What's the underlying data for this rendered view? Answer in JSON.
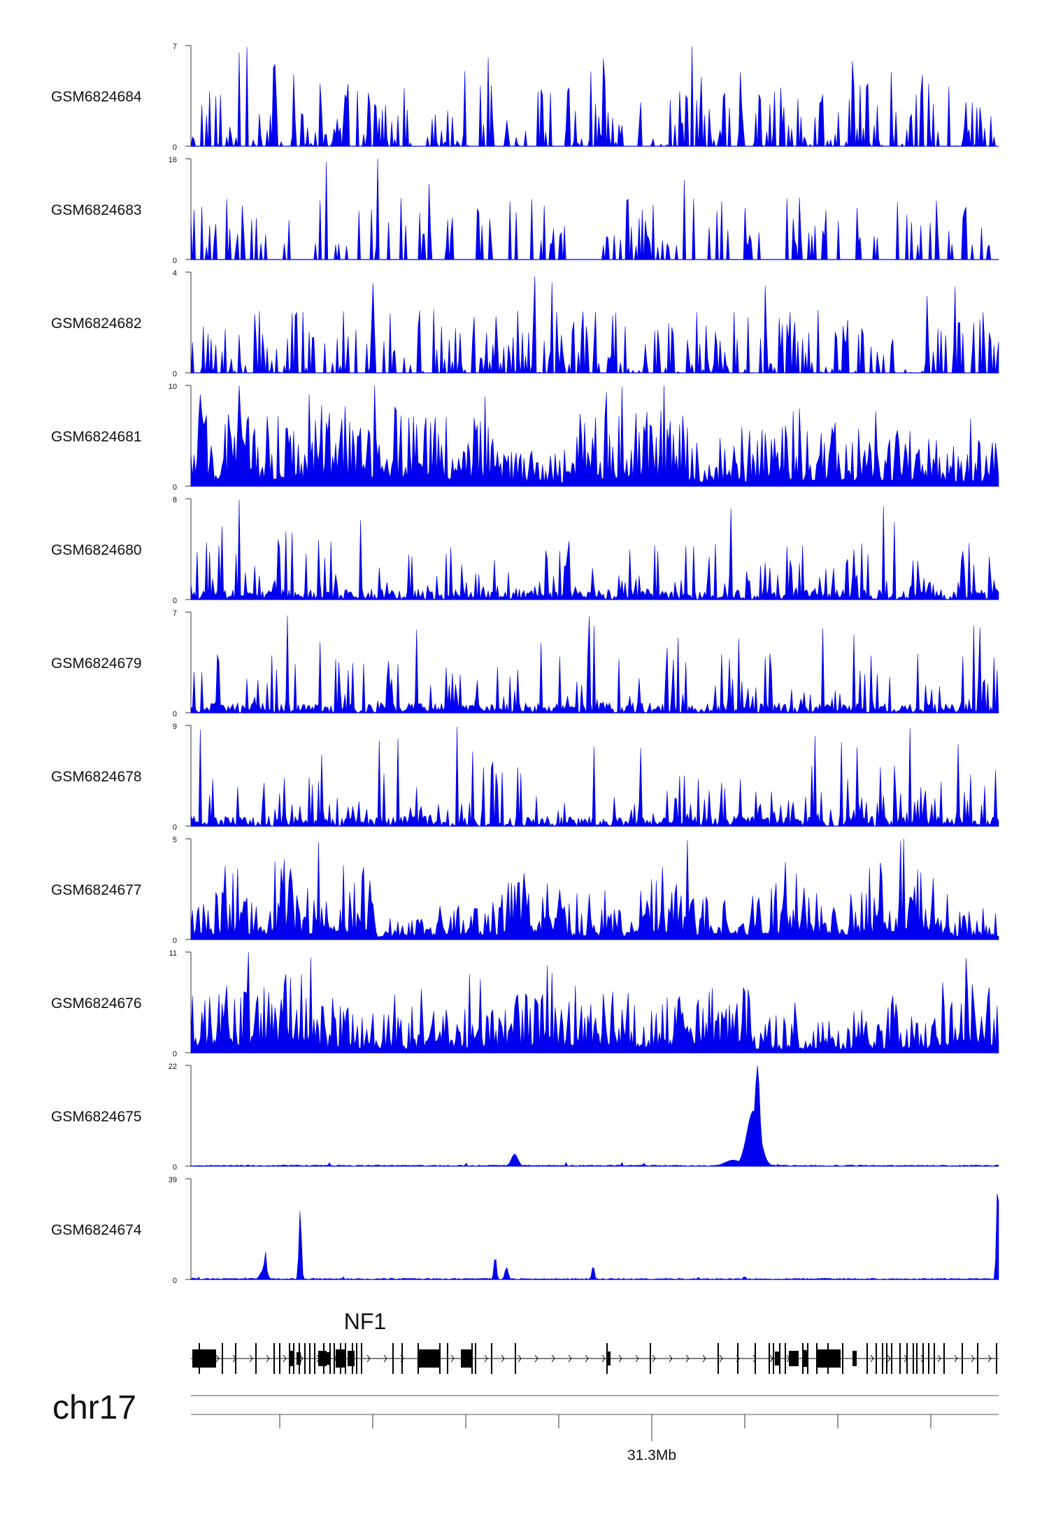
{
  "colors": {
    "signal": "#0000ee",
    "axis": "#333333",
    "gene": "#000000"
  },
  "tracks": [
    {
      "name": "GSM6824684",
      "ymax": "7",
      "ymin": "0",
      "max": 7,
      "style": "sparse"
    },
    {
      "name": "GSM6824683",
      "ymax": "16",
      "ymin": "0",
      "max": 16,
      "style": "verysparse"
    },
    {
      "name": "GSM6824682",
      "ymax": "4",
      "ymin": "0",
      "max": 4,
      "style": "sparse"
    },
    {
      "name": "GSM6824681",
      "ymax": "10",
      "ymin": "0",
      "max": 10,
      "style": "dense"
    },
    {
      "name": "GSM6824680",
      "ymax": "8",
      "ymin": "0",
      "max": 8,
      "style": "medium"
    },
    {
      "name": "GSM6824679",
      "ymax": "7",
      "ymin": "0",
      "max": 7,
      "style": "medium"
    },
    {
      "name": "GSM6824678",
      "ymax": "9",
      "ymin": "0",
      "max": 9,
      "style": "medium"
    },
    {
      "name": "GSM6824677",
      "ymax": "5",
      "ymin": "0",
      "max": 5,
      "style": "dense"
    },
    {
      "name": "GSM6824676",
      "ymax": "11",
      "ymin": "0",
      "max": 11,
      "style": "dense"
    },
    {
      "name": "GSM6824675",
      "ymax": "22",
      "ymin": "0",
      "max": 22,
      "style": "flat"
    },
    {
      "name": "GSM6824674",
      "ymax": "39",
      "ymin": "0",
      "max": 39,
      "style": "flat"
    }
  ],
  "gene": {
    "name": "NF1"
  },
  "chromosome": "chr17",
  "axis": {
    "tick_label": "31.3Mb"
  },
  "chart_data": {
    "type": "area",
    "title": "",
    "xlabel": "chr17",
    "ylabel": "",
    "x_tick_labels": [
      "31.3Mb"
    ],
    "series": [
      {
        "name": "GSM6824684",
        "ylim": [
          0,
          7
        ]
      },
      {
        "name": "GSM6824683",
        "ylim": [
          0,
          16
        ]
      },
      {
        "name": "GSM6824682",
        "ylim": [
          0,
          4
        ]
      },
      {
        "name": "GSM6824681",
        "ylim": [
          0,
          10
        ]
      },
      {
        "name": "GSM6824680",
        "ylim": [
          0,
          8
        ]
      },
      {
        "name": "GSM6824679",
        "ylim": [
          0,
          7
        ]
      },
      {
        "name": "GSM6824678",
        "ylim": [
          0,
          9
        ]
      },
      {
        "name": "GSM6824677",
        "ylim": [
          0,
          5
        ]
      },
      {
        "name": "GSM6824676",
        "ylim": [
          0,
          11
        ]
      },
      {
        "name": "GSM6824675",
        "ylim": [
          0,
          22
        ]
      },
      {
        "name": "GSM6824674",
        "ylim": [
          0,
          39
        ]
      }
    ],
    "grid": false,
    "legend": "none",
    "gene_annotation": "NF1"
  }
}
